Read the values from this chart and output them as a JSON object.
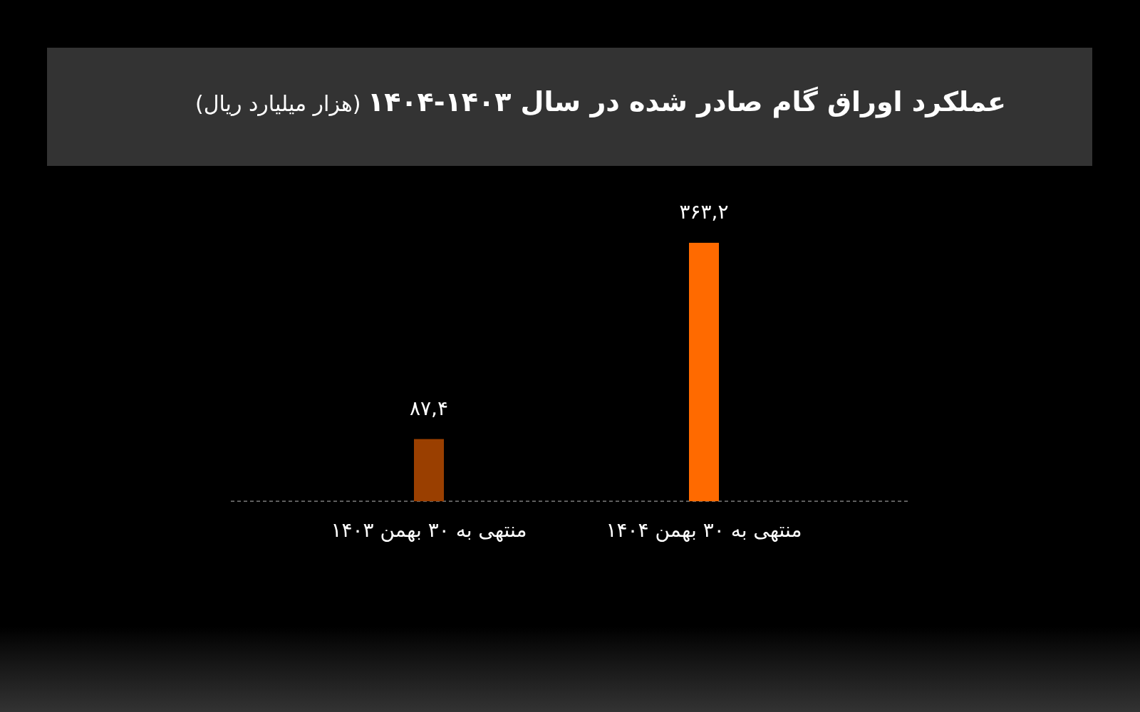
{
  "chart_data": {
    "type": "bar",
    "title": "عملکرد اوراق گام صادر شده در سال ۱۴۰۳-۱۴۰۴",
    "subtitle": "(هزار میلیارد ریال)",
    "categories": [
      "منتهی به ۳۰ بهمن ۱۴۰۳",
      "منتهی به ۳۰ بهمن ۱۴۰۴"
    ],
    "values": [
      87.4,
      363.2
    ],
    "colors": [
      "#9a3f00",
      "#ff6a00"
    ],
    "value_labels": [
      "۸۷,۴",
      "۳۶۳,۲"
    ],
    "grid": false
  }
}
